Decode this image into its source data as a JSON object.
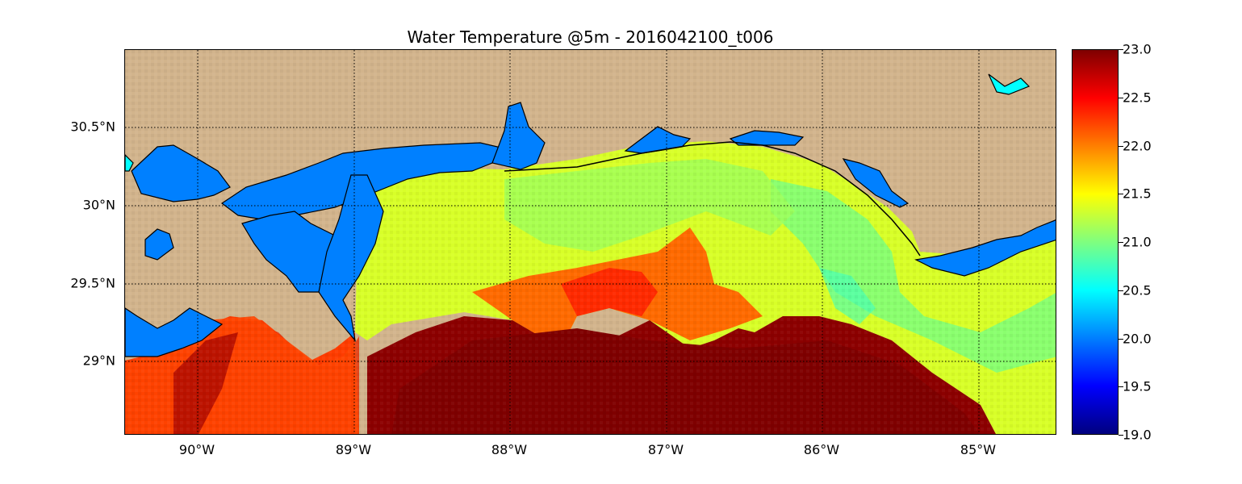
{
  "title": "Water Temperature @5m - 2016042100_t006",
  "map": {
    "land_color": "#d2b48c",
    "water_color": "#0080ff",
    "colormap": "jet",
    "x_ticks": [
      "90°W",
      "89°W",
      "88°W",
      "87°W",
      "86°W",
      "85°W"
    ],
    "y_ticks": [
      "30.5°N",
      "30°N",
      "29.5°N",
      "29°N"
    ],
    "gridlines": "dotted"
  },
  "colorbar": {
    "min": 19.0,
    "max": 23.0,
    "ticks": [
      "23.0",
      "22.5",
      "22.0",
      "21.5",
      "21.0",
      "20.5",
      "20.0",
      "19.5",
      "19.0"
    ]
  },
  "chart_data": {
    "type": "heatmap",
    "title": "Water Temperature @5m - 2016042100_t006",
    "x_range": [
      -90.5,
      -84.5
    ],
    "y_range": [
      28.55,
      31.0
    ],
    "value_range": [
      19.0,
      23.0
    ],
    "xlabel": "",
    "ylabel": ""
  }
}
